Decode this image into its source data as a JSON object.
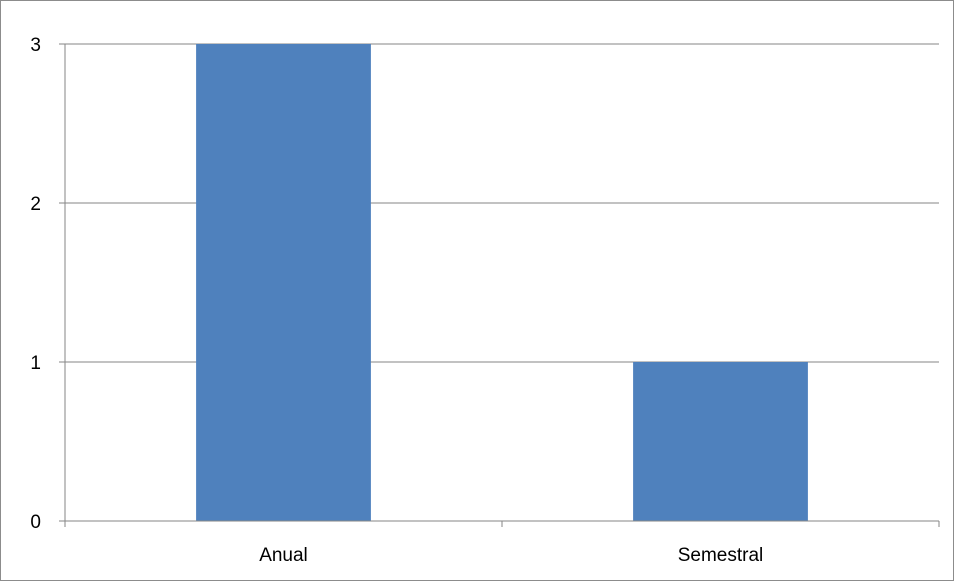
{
  "chart_data": {
    "type": "bar",
    "title": "",
    "xlabel": "",
    "ylabel": "",
    "categories": [
      "Anual",
      "Semestral"
    ],
    "values": [
      3,
      1
    ],
    "ylim": [
      0,
      3
    ],
    "yticks": [
      0,
      1,
      2,
      3
    ],
    "grid": true,
    "legend": "none",
    "bar_color": "#4f81bd",
    "grid_color": "#868686",
    "axis_color": "#868686"
  }
}
